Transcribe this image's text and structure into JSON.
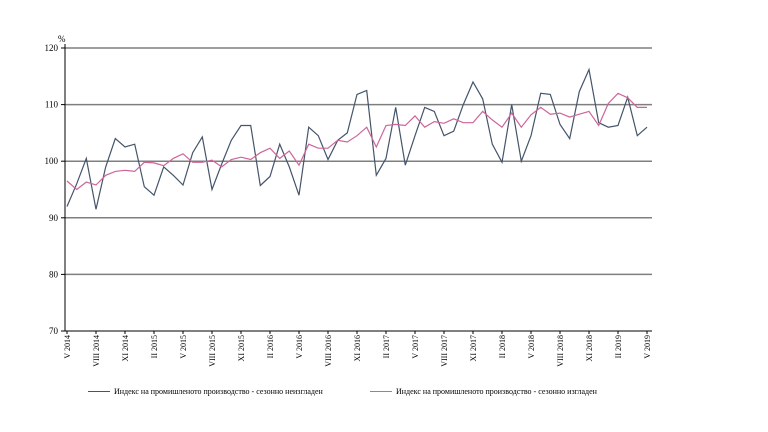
{
  "chart_data": {
    "type": "line",
    "ylabel": "%",
    "ylim": [
      70,
      120
    ],
    "yticks": [
      70,
      80,
      90,
      100,
      110,
      120
    ],
    "grid": true,
    "legend_placement": "bottom",
    "x_tick_labels": [
      "V 2014",
      "VIII 2014",
      "XI 2014",
      "II 2015",
      "V 2015",
      "VIII 2015",
      "XI 2015",
      "II 2016",
      "V 2016",
      "VIII 2016",
      "XI 2016",
      "II 2017",
      "V 2017",
      "VIII 2017",
      "XI 2017",
      "II 2018",
      "V 2018",
      "VIII 2018",
      "XI 2018",
      "II 2019",
      "V 2019"
    ],
    "n_points": 61,
    "series": [
      {
        "name": "Индекс  на промишленото производство - сезонно  неизгладен",
        "color": "#44546a",
        "values": [
          92,
          96,
          100.5,
          91.5,
          99,
          104,
          102.5,
          103,
          95.5,
          94,
          99,
          97.5,
          95.8,
          101.5,
          104.3,
          95,
          99.5,
          103.7,
          106.3,
          106.3,
          95.7,
          97.3,
          103,
          99,
          94,
          106,
          104.5,
          100.3,
          103.7,
          105,
          111.8,
          112.5,
          97.5,
          100.5,
          109.5,
          99.3,
          104.5,
          109.5,
          108.8,
          104.5,
          105.3,
          110,
          114,
          111,
          103,
          99.8,
          110,
          100,
          104.5,
          112,
          111.8,
          106.5,
          104,
          112.3,
          116.2,
          106.8,
          106,
          106.3,
          111.3,
          104.5,
          106
        ]
      },
      {
        "name": "Индекс  на промишленото производство - сезонно  изгладен",
        "color": "#cc6699",
        "values": [
          96.5,
          95,
          96.3,
          95.8,
          97.5,
          98.2,
          98.4,
          98.2,
          99.8,
          99.7,
          99.2,
          100.5,
          101.3,
          99.8,
          99.8,
          100.2,
          99,
          100.3,
          100.7,
          100.3,
          101.5,
          102.3,
          100.5,
          101.8,
          99.3,
          103,
          102.3,
          102.3,
          103.7,
          103.4,
          104.5,
          106,
          102.5,
          106.3,
          106.5,
          106.3,
          108,
          106,
          107,
          106.7,
          107.5,
          106.8,
          106.8,
          108.8,
          107.3,
          106,
          108.5,
          106,
          108.2,
          109.5,
          108.3,
          108.5,
          107.8,
          108.3,
          108.8,
          106.3,
          110.2,
          112,
          111.2,
          109.5,
          109.5
        ]
      }
    ]
  }
}
